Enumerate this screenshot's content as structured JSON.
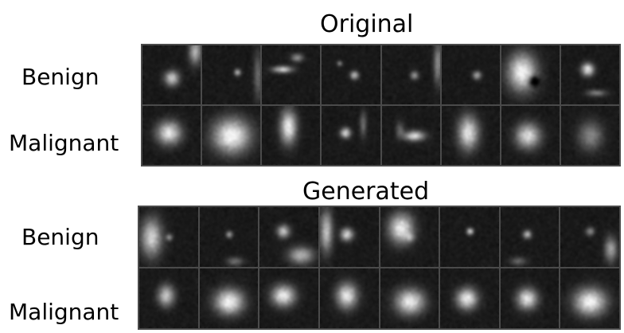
{
  "panels": [
    {
      "title": "Original",
      "rows": [
        {
          "label": "Benign"
        },
        {
          "label": "Malignant"
        }
      ]
    },
    {
      "title": "Generated",
      "rows": [
        {
          "label": "Benign"
        },
        {
          "label": "Malignant"
        }
      ]
    }
  ]
}
